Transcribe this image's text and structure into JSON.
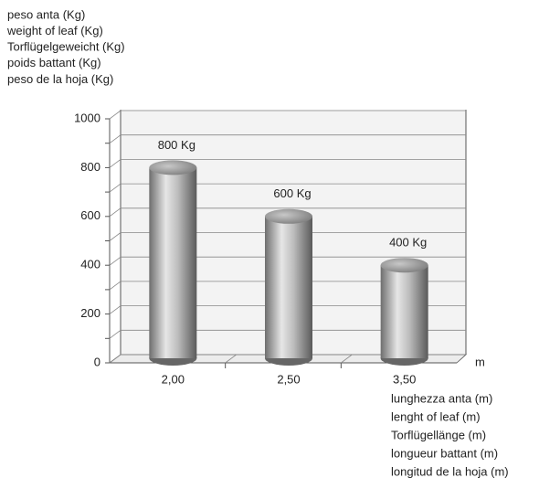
{
  "chart_data": {
    "type": "cylinder-bar",
    "ylabel": [
      "peso anta (Kg)",
      "weight of leaf (Kg)",
      "Torflügelgeweicht (Kg)",
      "poids battant (Kg)",
      "peso de la hoja (Kg)"
    ],
    "xlabel": [
      "lunghezza anta (m)",
      "lenght of leaf (m)",
      "Torflügellänge (m)",
      "longueur battant (m)",
      "longitud de la hoja (m)"
    ],
    "x_unit": "m",
    "categories": [
      "2,00",
      "2,50",
      "3,50"
    ],
    "values": [
      800,
      600,
      400
    ],
    "value_labels": [
      "800 Kg",
      "600 Kg",
      "400 Kg"
    ],
    "ylim": [
      0,
      1000
    ],
    "yticks": [
      0,
      200,
      400,
      600,
      800,
      1000
    ],
    "minor_yticks": [
      100,
      300,
      500,
      700,
      900
    ],
    "grid": true,
    "color": "#9a9a9a"
  }
}
